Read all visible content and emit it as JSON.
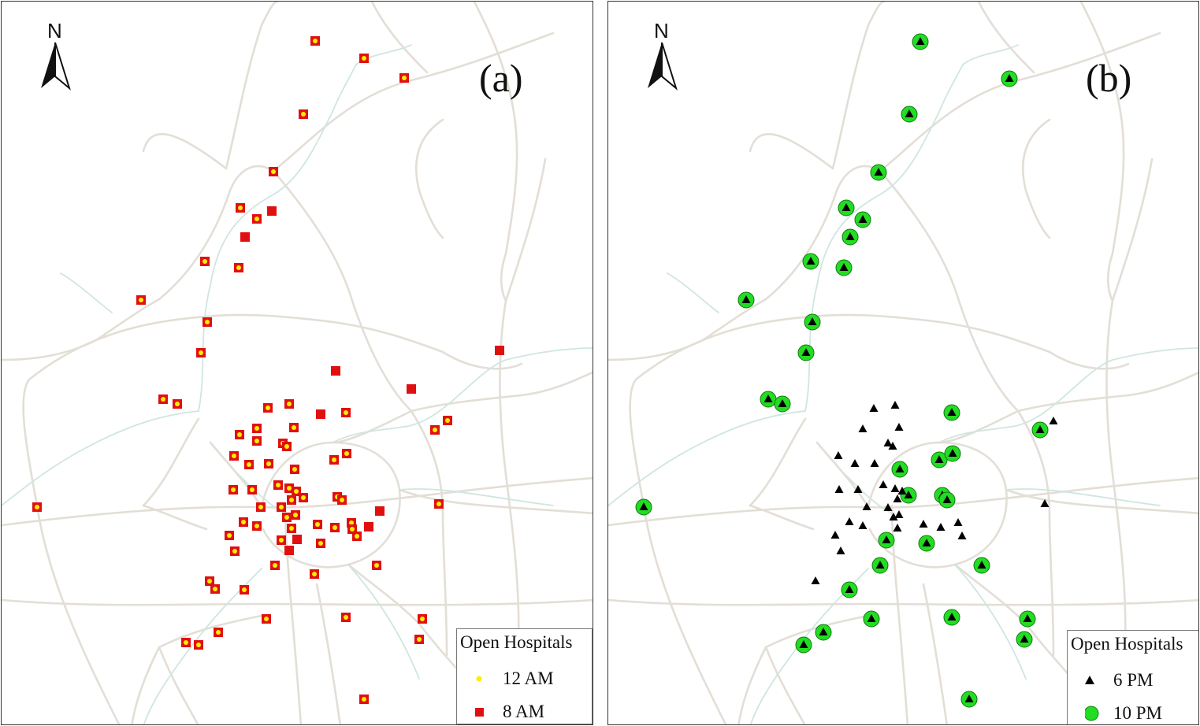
{
  "colors": {
    "road": "#e3ded6",
    "river": "#cfe6e0",
    "hospital_12am": "#ffee00",
    "hospital_8am": "#e01010",
    "hospital_6pm": "#000000",
    "hospital_10pm": "#22dd22"
  },
  "panels": [
    {
      "id": "a",
      "label": "(a)",
      "north": "N",
      "legend": {
        "title": "Open Hospitals",
        "items": [
          {
            "label": "12 AM",
            "symbol": "yellow-dot"
          },
          {
            "label": "8 AM",
            "symbol": "red-square"
          }
        ]
      }
    },
    {
      "id": "b",
      "label": "(b)",
      "north": "N",
      "legend": {
        "title": "Open Hospitals",
        "items": [
          {
            "label": "6 PM",
            "symbol": "black-triangle"
          },
          {
            "label": "10 PM",
            "symbol": "green-circle"
          }
        ]
      }
    }
  ]
}
